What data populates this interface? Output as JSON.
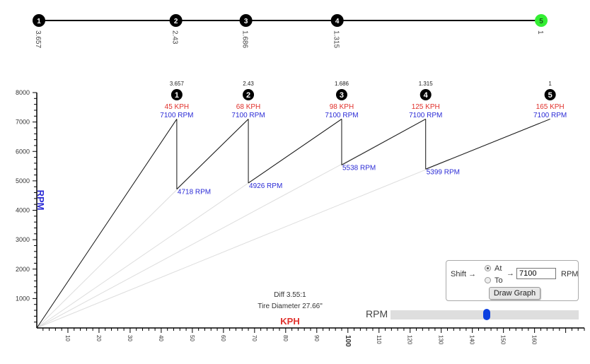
{
  "top_gears": [
    {
      "number": "1",
      "ratio": "3.657"
    },
    {
      "number": "2",
      "ratio": "2.43"
    },
    {
      "number": "3",
      "ratio": "1.686"
    },
    {
      "number": "4",
      "ratio": "1.315"
    },
    {
      "number": "5",
      "ratio": "1"
    }
  ],
  "diff_label": "Diff 3.55:1",
  "tire_label": "Tire Diameter 27.66\"",
  "shift_panel": {
    "shift_label": "Shift →",
    "at_label": "At",
    "to_label": "To",
    "arrow": "→",
    "rpm_value": "7100",
    "rpm_unit": "RPM",
    "button_label": "Draw Graph",
    "selected": "At"
  },
  "slider": {
    "label": "RPM",
    "value_fraction": 0.51
  },
  "colors": {
    "speed_text": "#e0302b",
    "rpm_text": "#2b2bd6",
    "gear_circle": "#000000",
    "active_gear": "#33ee33",
    "slider_thumb": "#0b3fe0"
  },
  "chart_data": {
    "type": "line",
    "xlabel": "KPH",
    "ylabel": "RPM",
    "xlim": [
      0,
      176
    ],
    "ylim": [
      0,
      8000
    ],
    "x_ticks": [
      "10",
      "20",
      "30",
      "40",
      "50",
      "60",
      "70",
      "80",
      "90",
      "100",
      "110",
      "120",
      "130",
      "140",
      "150",
      "160"
    ],
    "x_tick_values": [
      10,
      20,
      30,
      40,
      50,
      60,
      70,
      80,
      90,
      100,
      110,
      120,
      130,
      140,
      150,
      160
    ],
    "y_ticks": [
      "1000",
      "2000",
      "3000",
      "4000",
      "5000",
      "6000",
      "7000",
      "8000"
    ],
    "y_tick_values": [
      1000,
      2000,
      3000,
      4000,
      5000,
      6000,
      7000,
      8000
    ],
    "gears": [
      {
        "number": "1",
        "ratio": "3.657",
        "shift_kph": 45,
        "shift_kph_label": "45 KPH",
        "shift_rpm": 7100,
        "shift_rpm_label": "7100 RPM",
        "drop_rpm": 4718,
        "drop_rpm_label": "4718 RPM",
        "line_start_rpm": 0
      },
      {
        "number": "2",
        "ratio": "2.43",
        "shift_kph": 68,
        "shift_kph_label": "68 KPH",
        "shift_rpm": 7100,
        "shift_rpm_label": "7100 RPM",
        "drop_rpm": 4926,
        "drop_rpm_label": "4926 RPM",
        "line_start_rpm": 4718
      },
      {
        "number": "3",
        "ratio": "1.686",
        "shift_kph": 98,
        "shift_kph_label": "98 KPH",
        "shift_rpm": 7100,
        "shift_rpm_label": "7100 RPM",
        "drop_rpm": 5538,
        "drop_rpm_label": "5538 RPM",
        "line_start_rpm": 4926
      },
      {
        "number": "4",
        "ratio": "1.315",
        "shift_kph": 125,
        "shift_kph_label": "125 KPH",
        "shift_rpm": 7100,
        "shift_rpm_label": "7100 RPM",
        "drop_rpm": 5399,
        "drop_rpm_label": "5399 RPM",
        "line_start_rpm": 5538
      },
      {
        "number": "5",
        "ratio": "1",
        "shift_kph": 165,
        "shift_kph_label": "165 KPH",
        "shift_rpm": 7100,
        "shift_rpm_label": "7100 RPM",
        "drop_rpm": null,
        "drop_rpm_label": "",
        "line_start_rpm": 5399
      }
    ]
  }
}
